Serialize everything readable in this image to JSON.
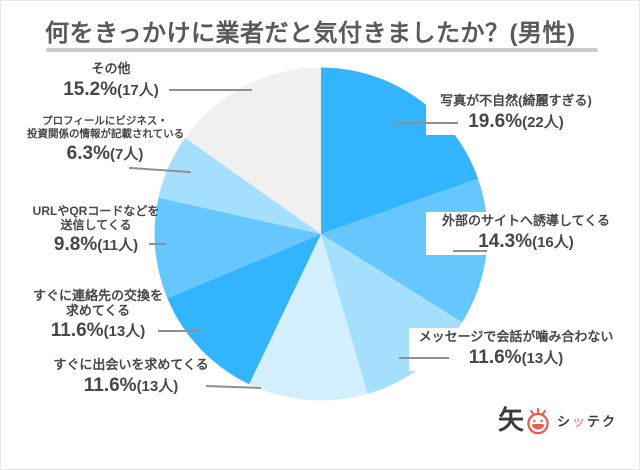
{
  "page": {
    "title": "何をきっかけに業者だと気付きましたか？(男性)"
  },
  "chart_data": {
    "type": "pie",
    "title": "何をきっかけに業者だと気付きましたか？(男性)",
    "direction": "clockwise",
    "start_angle_deg": 0,
    "legend": "none",
    "slices": [
      {
        "label": "写真が不自然(綺麗すぎる)",
        "percent": 19.6,
        "count": 22,
        "color": "#33B4FE"
      },
      {
        "label": "外部のサイトへ誘導してくる",
        "percent": 14.3,
        "count": 16,
        "color": "#66C7FE"
      },
      {
        "label": "メッセージで会話が噛み合わない",
        "percent": 11.6,
        "count": 13,
        "color": "#A5DFFE"
      },
      {
        "label": "すぐに出会いを求めてくる",
        "percent": 11.6,
        "count": 13,
        "color": "#D3EFFE"
      },
      {
        "label": "すぐに連絡先の交換を求めてくる",
        "percent": 11.6,
        "count": 13,
        "color": "#33B4FE"
      },
      {
        "label": "URLやQRコードなどを送信してくる",
        "percent": 9.8,
        "count": 11,
        "color": "#66C7FE"
      },
      {
        "label": "プロフィールにビジネス・投資関係の情報が記載されている",
        "percent": 6.3,
        "count": 7,
        "color": "#A5DFFE"
      },
      {
        "label": "その他",
        "percent": 15.2,
        "count": 17,
        "color": "#F0F0F0"
      }
    ]
  },
  "callouts": {
    "photo": {
      "line1": "写真が不自然(綺麗すぎる)",
      "pct": "19.6%",
      "cnt": "(22人)"
    },
    "external": {
      "line1": "外部のサイトへ誘導してくる",
      "pct": "14.3%",
      "cnt": "(16人)"
    },
    "message": {
      "line1": "メッセージで会話が噛み合わない",
      "pct": "11.6%",
      "cnt": "(13人)"
    },
    "other": {
      "line1": "その他",
      "pct": "15.2%",
      "cnt": "(17人)"
    },
    "profile": {
      "line1": "プロフィールにビジネス・",
      "line2": "投資関係の情報が記載されている",
      "pct": "6.3%",
      "cnt": "(7人)"
    },
    "url": {
      "line1": "URLやQRコードなどを",
      "line2": "送信してくる",
      "pct": "9.8%",
      "cnt": "(11人)"
    },
    "contact": {
      "line1": "すぐに連絡先の交換を",
      "line2": "求めてくる",
      "pct": "11.6%",
      "cnt": "(13人)"
    },
    "meet": {
      "line1": "すぐに出会いを求めてくる",
      "pct": "11.6%",
      "cnt": "(13人)"
    }
  },
  "logo": {
    "kanji": "矢",
    "text_dark1": "シ",
    "text_accent": "ッ",
    "text_dark2": "テク",
    "accent_color": "#E95B50"
  }
}
